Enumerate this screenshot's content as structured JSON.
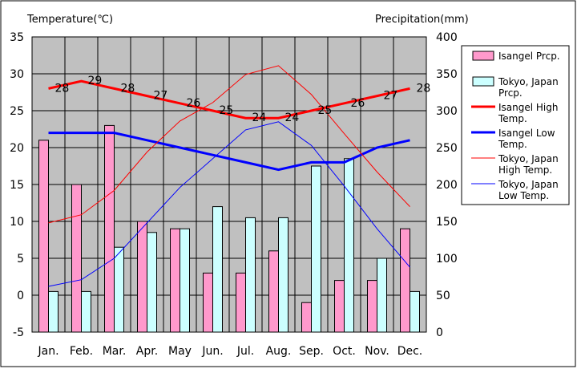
{
  "chart_data": {
    "type": "bar",
    "categories": [
      "Jan.",
      "Feb.",
      "Mar.",
      "Apr.",
      "May",
      "Jun.",
      "Jul.",
      "Aug.",
      "Sep.",
      "Oct.",
      "Nov.",
      "Dec."
    ],
    "left_axis_title": "Temperature(℃)",
    "right_axis_title": "Precipitation(mm)",
    "left_ylim": [
      -5,
      35
    ],
    "left_ticks": [
      -5,
      0,
      5,
      10,
      15,
      20,
      25,
      30,
      35
    ],
    "right_ylim": [
      0,
      400
    ],
    "right_ticks": [
      0,
      50,
      100,
      150,
      200,
      250,
      300,
      350,
      400
    ],
    "grid": true,
    "legend_position": "right",
    "series": [
      {
        "name": "Isangel Prcp.",
        "kind": "bar",
        "axis": "right",
        "color": "#ff99cc",
        "values": [
          260,
          200,
          280,
          150,
          140,
          80,
          80,
          110,
          40,
          70,
          70,
          140
        ]
      },
      {
        "name": "Tokyo, Japan Prcp.",
        "kind": "bar",
        "axis": "right",
        "color": "#ccffff",
        "values": [
          55,
          55,
          115,
          135,
          140,
          170,
          155,
          155,
          225,
          235,
          100,
          55
        ]
      },
      {
        "name": "Isangel High Temp.",
        "kind": "line",
        "axis": "left",
        "color": "#ff0000",
        "values": [
          28,
          29,
          28,
          27,
          26,
          25,
          24,
          24,
          25,
          26,
          27,
          28
        ],
        "labels": [
          "28",
          "29",
          "28",
          "27",
          "26",
          "25",
          "24",
          "24",
          "25",
          "26",
          "27",
          "28"
        ]
      },
      {
        "name": "Isangel Low Temp.",
        "kind": "line",
        "axis": "left",
        "color": "#0000ff",
        "values": [
          22,
          22,
          22,
          21,
          20,
          19,
          18,
          17,
          18,
          18,
          20,
          21
        ]
      },
      {
        "name": "Tokyo, Japan High Temp.",
        "kind": "line",
        "axis": "left",
        "color": "#ff0000",
        "values": [
          9.8,
          10.9,
          14.2,
          19.4,
          23.6,
          26.1,
          29.9,
          31.1,
          27.2,
          21.9,
          16.7,
          12.0
        ]
      },
      {
        "name": "Tokyo, Japan Low Temp.",
        "kind": "line",
        "axis": "left",
        "color": "#0000ff",
        "values": [
          1.2,
          2.1,
          5.0,
          9.8,
          14.6,
          18.5,
          22.4,
          23.5,
          20.3,
          14.8,
          9.0,
          3.8
        ]
      }
    ]
  }
}
